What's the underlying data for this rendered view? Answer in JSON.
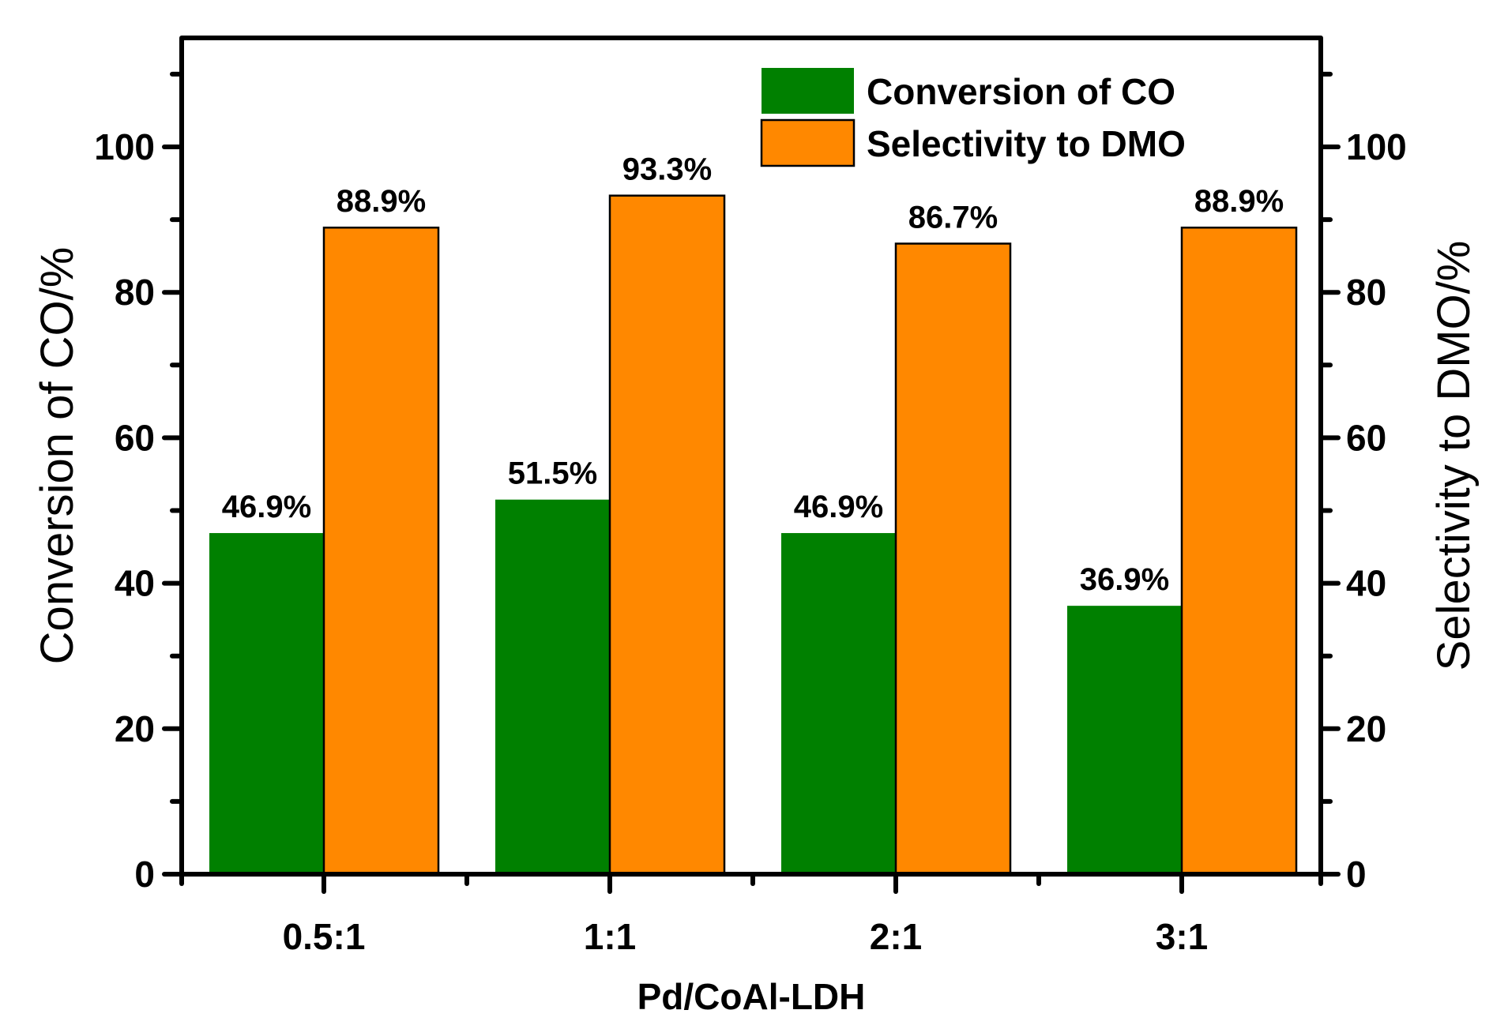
{
  "chart_data": {
    "type": "bar",
    "title": "",
    "categories": [
      "0.5:1",
      "1:1",
      "2:1",
      "3:1"
    ],
    "series": [
      {
        "name": "Conversion of CO",
        "axis": "left",
        "color": "#008000",
        "values": [
          46.9,
          51.5,
          46.9,
          36.9
        ],
        "labels": [
          "46.9%",
          "51.5%",
          "46.9%",
          "36.9%"
        ]
      },
      {
        "name": "Selectivity to DMO",
        "axis": "right",
        "color": "#FF8800",
        "values": [
          88.9,
          93.3,
          86.7,
          88.9
        ],
        "labels": [
          "88.9%",
          "93.3%",
          "86.7%",
          "88.9%"
        ]
      }
    ],
    "xlabel": "Pd/CoAl-LDH",
    "ylabel": "Conversion of CO/%",
    "y2label": "Selectivity to DMO/%",
    "ylim": [
      0,
      115
    ],
    "y2lim": [
      0,
      115
    ],
    "yticks": [
      0,
      20,
      40,
      60,
      80,
      100
    ],
    "y2ticks": [
      0,
      20,
      40,
      60,
      80,
      100
    ],
    "grid": false,
    "legend_position": "top-right"
  }
}
